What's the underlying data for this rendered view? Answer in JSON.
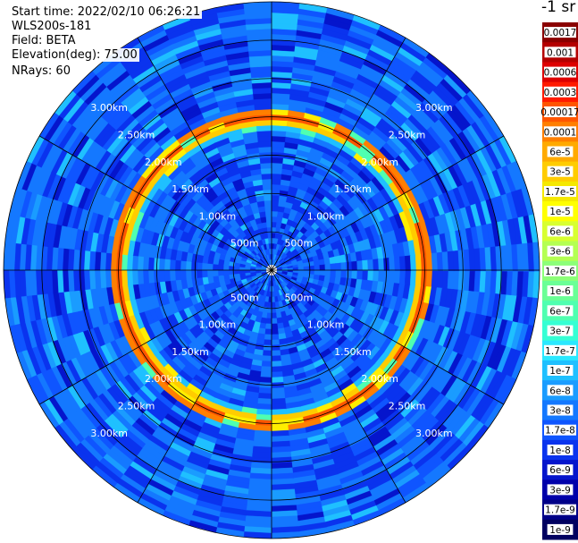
{
  "info": {
    "start_time": "Start time: 2022/02/10 06:26:21",
    "device": "WLS200s-181",
    "field": "Field: BETA",
    "elevation": "Elevation(deg): 75.00",
    "nrays": "NRays: 60"
  },
  "chart_data": {
    "type": "heatmap",
    "projection": "polar",
    "unit": "-1 sr",
    "max_range_km": 3.5,
    "ring_values_km": [
      0.5,
      1.0,
      1.5,
      2.0,
      2.5,
      3.0,
      3.5
    ],
    "ring_labels": [
      "500m",
      "1.00km",
      "1.50km",
      "2.00km",
      "2.50km",
      "3.00km"
    ],
    "n_rays": 60,
    "features": [
      {
        "type": "aerosol-layer",
        "range_km": [
          1.8,
          2.1
        ],
        "peak_value": 0.0001
      }
    ],
    "colorbar": {
      "labels": [
        "0.0017",
        "0.001",
        "0.0006",
        "0.0003",
        "0.00017",
        "0.0001",
        "6e-5",
        "3e-5",
        "1.7e-5",
        "1e-5",
        "6e-6",
        "3e-6",
        "1.7e-6",
        "1e-6",
        "6e-7",
        "3e-7",
        "1.7e-7",
        "1e-7",
        "6e-8",
        "3e-8",
        "1.7e-8",
        "1e-8",
        "6e-9",
        "3e-9",
        "1.7e-9",
        "1e-9"
      ],
      "colors": [
        "#8a0000",
        "#b40000",
        "#dd0000",
        "#ff1a00",
        "#ff5500",
        "#ff7f00",
        "#ffaa00",
        "#ffcc00",
        "#f5e800",
        "#ffff00",
        "#d8ff30",
        "#b4ff52",
        "#8cff78",
        "#6aff96",
        "#4fffb0",
        "#35ffd4",
        "#2ae8ff",
        "#1fc0ff",
        "#1a9cff",
        "#1478ff",
        "#0f55ff",
        "#0a33ee",
        "#0515cc",
        "#0000aa",
        "#000088",
        "#000060"
      ]
    }
  }
}
